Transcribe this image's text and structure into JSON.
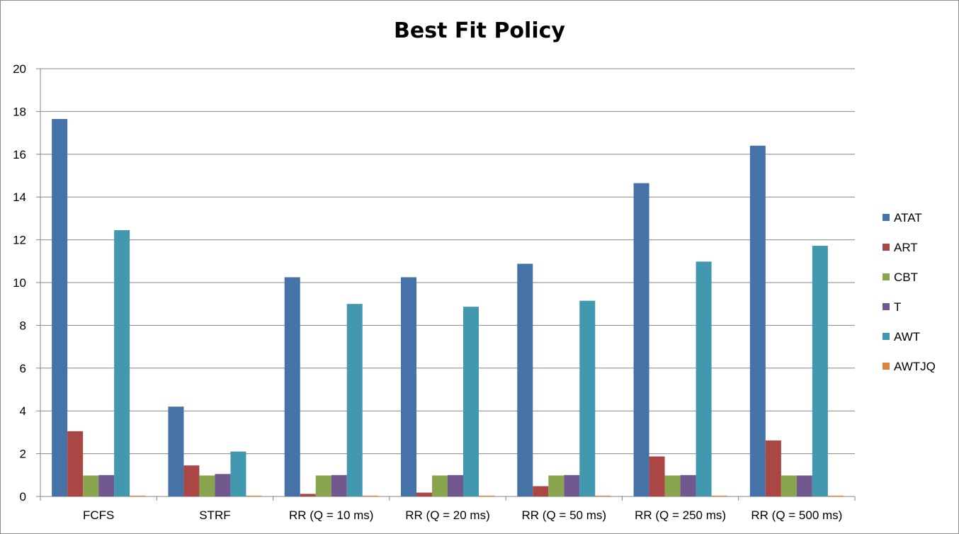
{
  "chart_data": {
    "type": "bar",
    "title": "Best Fit Policy",
    "xlabel": "",
    "ylabel": "",
    "ylim": [
      0,
      20
    ],
    "yticks": [
      0,
      2,
      4,
      6,
      8,
      10,
      12,
      14,
      16,
      18,
      20
    ],
    "grid": "horizontal",
    "legend_position": "right",
    "categories": [
      "FCFS",
      "STRF",
      "RR (Q = 10 ms)",
      "RR (Q = 20 ms)",
      "RR (Q = 50 ms)",
      "RR (Q = 250 ms)",
      "RR (Q = 500 ms)"
    ],
    "series": [
      {
        "name": "ATAT",
        "color": "#4572a7",
        "values": [
          17.65,
          4.2,
          10.25,
          10.25,
          10.88,
          14.65,
          16.4
        ]
      },
      {
        "name": "ART",
        "color": "#aa4643",
        "values": [
          3.05,
          1.45,
          0.12,
          0.18,
          0.48,
          1.87,
          2.62
        ]
      },
      {
        "name": "CBT",
        "color": "#89a54e",
        "values": [
          0.98,
          0.98,
          0.98,
          0.98,
          0.98,
          0.98,
          0.98
        ]
      },
      {
        "name": "T",
        "color": "#71588f",
        "values": [
          1.0,
          1.05,
          1.0,
          1.0,
          1.0,
          1.0,
          0.98
        ]
      },
      {
        "name": "AWT",
        "color": "#4198af",
        "values": [
          12.45,
          2.1,
          9.0,
          8.87,
          9.15,
          10.98,
          11.72
        ]
      },
      {
        "name": "AWTJQ",
        "color": "#db843d",
        "values": [
          0.04,
          0.04,
          0.04,
          0.04,
          0.04,
          0.04,
          0.04
        ]
      }
    ]
  }
}
